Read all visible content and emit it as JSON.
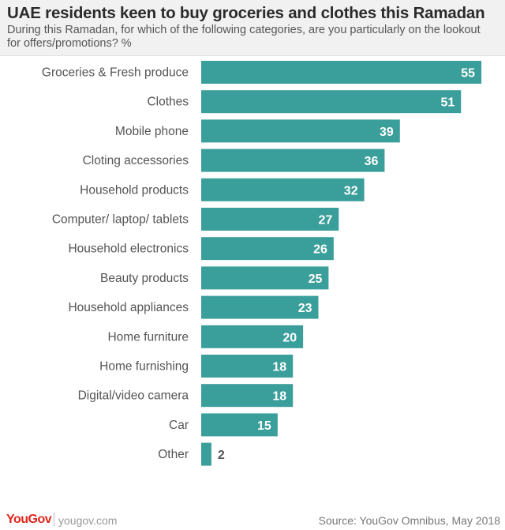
{
  "header": {
    "title": "UAE residents keen to buy groceries and clothes this Ramadan",
    "subtitle": "During this Ramadan, for which of the following categories, are you particularly on the lookout for offers/promotions? %"
  },
  "chart_data": {
    "type": "bar",
    "orientation": "horizontal",
    "categories": [
      "Groceries & Fresh produce",
      "Clothes",
      "Mobile phone",
      "Cloting accessories",
      "Household products",
      "Computer/ laptop/ tablets",
      "Household electronics",
      "Beauty products",
      "Household appliances",
      "Home furniture",
      "Home furnishing",
      "Digital/video camera",
      "Car",
      "Other"
    ],
    "values": [
      55,
      51,
      39,
      36,
      32,
      27,
      26,
      25,
      23,
      20,
      18,
      18,
      15,
      2
    ],
    "title": "UAE residents keen to buy groceries and clothes this Ramadan",
    "bar_color": "#3a9e9a",
    "inside_label_color": "#ffffff",
    "outside_label_color": "#555555",
    "xlim": [
      0,
      57
    ],
    "grid": false,
    "legend": "none"
  },
  "footer": {
    "logo": "YouGov",
    "website": "yougov.com",
    "source": "Source: YouGov Omnibus, May 2018"
  },
  "colors": {
    "brand_red": "#e0251b",
    "header_bg": "#f1f1f1"
  }
}
